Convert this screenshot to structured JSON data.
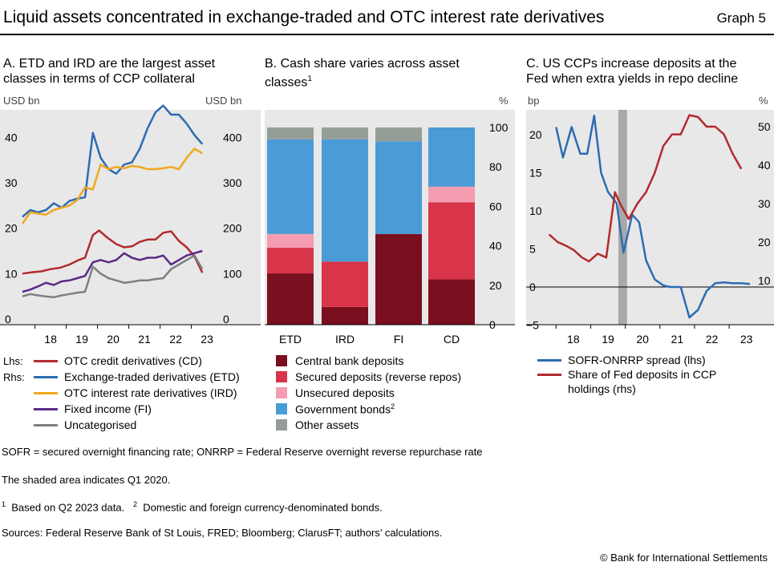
{
  "header": {
    "title": "Liquid assets concentrated in exchange-traded and OTC interest rate derivatives",
    "graph_label": "Graph 5"
  },
  "panel_a": {
    "title_line1": "A. ETD and IRD are the largest asset",
    "title_line2": "classes in terms of CCP collateral",
    "unit_left": "USD bn",
    "unit_right": "USD bn",
    "legend_lhs": "Lhs:",
    "legend_rhs": "Rhs:"
  },
  "panel_b": {
    "title_line1": "B. Cash share varies across asset",
    "title_line2": "classes",
    "title_sup": "1",
    "unit_right": "%"
  },
  "panel_c": {
    "title_line1": "C. US CCPs increase deposits at the",
    "title_line2": "Fed when extra yields in repo decline",
    "unit_left": "bp",
    "unit_right": "%"
  },
  "notes": {
    "abbrev": "SOFR = secured overnight financing rate; ONRRP = Federal Reserve overnight reverse repurchase rate",
    "shaded": "The shaded area indicates Q1 2020.",
    "fn1_num": "1",
    "fn1": "Based on Q2 2023 data.",
    "fn2_num": "2",
    "fn2": "Domestic and foreign currency-denominated bonds.",
    "sources": "Sources: Federal Reserve Bank of St Louis, FRED; Bloomberg; ClarusFT; authors’ calculations.",
    "copyright": "© Bank for International Settlements"
  },
  "chart_data": [
    {
      "type": "line",
      "title": "A. ETD and IRD are the largest asset classes in terms of CCP collateral",
      "xlabel": "",
      "ylabel_left": "USD bn",
      "ylabel_right": "USD bn",
      "x_ticks": [
        "18",
        "19",
        "20",
        "21",
        "22",
        "23"
      ],
      "x_range": [
        2017.6,
        2023.6
      ],
      "ylim_left": [
        0,
        48
      ],
      "yticks_left": [
        0,
        10,
        20,
        30,
        40
      ],
      "ylim_right": [
        0,
        480
      ],
      "yticks_right": [
        0,
        100,
        200,
        300,
        400
      ],
      "grid": false,
      "legend": "below",
      "series": [
        {
          "name": "OTC credit derivatives (CD)",
          "axis": "left",
          "color": "#b22a2e",
          "x": [
            2017.6,
            2017.9,
            2018.2,
            2018.5,
            2018.8,
            2019.1,
            2019.4,
            2019.6,
            2019.85,
            2020.05,
            2020.3,
            2020.6,
            2020.85,
            2021.1,
            2021.35,
            2021.6,
            2021.85,
            2022.1,
            2022.35,
            2022.6,
            2022.85,
            2023.1,
            2023.35
          ],
          "y": [
            10,
            10.3,
            10.5,
            11,
            11.3,
            12,
            13,
            13.5,
            18.5,
            19.5,
            18,
            16.5,
            15.8,
            16,
            17,
            17.5,
            17.5,
            19,
            19.3,
            17.2,
            15.8,
            13.8,
            10.2
          ]
        },
        {
          "name": "Exchange-traded derivatives (ETD)",
          "axis": "right",
          "color": "#2c6cb2",
          "x": [
            2017.6,
            2017.85,
            2018.1,
            2018.35,
            2018.6,
            2018.85,
            2019.1,
            2019.35,
            2019.6,
            2019.85,
            2020.1,
            2020.35,
            2020.6,
            2020.85,
            2021.1,
            2021.35,
            2021.6,
            2021.85,
            2022.1,
            2022.35,
            2022.6,
            2022.85,
            2023.1,
            2023.35
          ],
          "y": [
            225,
            240,
            235,
            240,
            255,
            245,
            260,
            265,
            268,
            410,
            355,
            330,
            320,
            340,
            345,
            375,
            420,
            455,
            470,
            450,
            450,
            430,
            405,
            385
          ]
        },
        {
          "name": "OTC interest rate derivatives (IRD)",
          "axis": "right",
          "color": "#f0a81e",
          "x": [
            2017.6,
            2017.85,
            2018.1,
            2018.35,
            2018.6,
            2018.85,
            2019.1,
            2019.35,
            2019.6,
            2019.85,
            2020.1,
            2020.35,
            2020.6,
            2020.85,
            2021.1,
            2021.35,
            2021.6,
            2021.85,
            2022.1,
            2022.35,
            2022.6,
            2022.85,
            2023.1,
            2023.35
          ],
          "y": [
            210,
            235,
            232,
            230,
            240,
            245,
            250,
            262,
            290,
            285,
            340,
            330,
            335,
            332,
            337,
            335,
            330,
            330,
            332,
            335,
            330,
            355,
            375,
            365
          ]
        },
        {
          "name": "Fixed income (FI)",
          "axis": "right",
          "color": "#5b2a86",
          "x": [
            2017.6,
            2017.85,
            2018.1,
            2018.35,
            2018.6,
            2018.85,
            2019.1,
            2019.35,
            2019.6,
            2019.85,
            2020.1,
            2020.35,
            2020.6,
            2020.85,
            2021.1,
            2021.35,
            2021.6,
            2021.85,
            2022.1,
            2022.35,
            2022.6,
            2022.85,
            2023.1,
            2023.35
          ],
          "y": [
            60,
            65,
            72,
            80,
            75,
            83,
            85,
            90,
            95,
            125,
            130,
            125,
            130,
            145,
            135,
            130,
            135,
            135,
            140,
            120,
            130,
            140,
            145,
            150
          ]
        },
        {
          "name": "Uncategorised",
          "axis": "right",
          "color": "#7f7f7f",
          "x": [
            2017.6,
            2017.85,
            2018.1,
            2018.35,
            2018.6,
            2018.85,
            2019.1,
            2019.35,
            2019.6,
            2019.85,
            2020.1,
            2020.35,
            2020.6,
            2020.85,
            2021.1,
            2021.35,
            2021.6,
            2021.85,
            2022.1,
            2022.35,
            2022.6,
            2022.85,
            2023.1,
            2023.35
          ],
          "y": [
            50,
            55,
            52,
            50,
            48,
            52,
            55,
            58,
            60,
            115,
            100,
            90,
            85,
            80,
            82,
            85,
            85,
            88,
            90,
            110,
            120,
            130,
            140,
            110
          ]
        }
      ]
    },
    {
      "type": "bar",
      "stacked": true,
      "title": "B. Cash share varies across asset classes",
      "categories": [
        "ETD",
        "IRD",
        "FI",
        "CD"
      ],
      "ylim": [
        0,
        100
      ],
      "yticks": [
        0,
        20,
        40,
        60,
        80,
        100
      ],
      "ylabel_right": "%",
      "legend": "below",
      "series": [
        {
          "name": "Central bank deposits",
          "color": "#7a0f1f",
          "values": [
            26,
            9,
            46,
            23
          ]
        },
        {
          "name": "Secured deposits (reverse repos)",
          "color": "#d8344a",
          "values": [
            13,
            23,
            0,
            39
          ]
        },
        {
          "name": "Unsecured deposits",
          "color": "#f59db0",
          "values": [
            7,
            0,
            0,
            8
          ]
        },
        {
          "name": "Government bonds",
          "color": "#4a9bd6",
          "values": [
            48,
            62,
            47,
            30
          ]
        },
        {
          "name": "Other assets",
          "color": "#959e96",
          "values": [
            6,
            6,
            7,
            0
          ]
        }
      ]
    },
    {
      "type": "line",
      "title": "C. US CCPs increase deposits at the Fed when extra yields in repo decline",
      "x_ticks": [
        "18",
        "19",
        "20",
        "21",
        "22",
        "23"
      ],
      "x_range": [
        2017.6,
        2023.6
      ],
      "ylim_left": [
        -8,
        25
      ],
      "yticks_left": [
        -5,
        0,
        5,
        10,
        15,
        20
      ],
      "ylim_right": [
        0,
        60
      ],
      "yticks_right": [
        10,
        20,
        30,
        40,
        50
      ],
      "ylabel_left": "bp",
      "ylabel_right": "%",
      "shaded_period": "Q1 2020",
      "legend": "below",
      "series": [
        {
          "name": "SOFR-ONRRP spread (lhs)",
          "axis": "left",
          "color": "#2c6cb2",
          "x": [
            2018.0,
            2018.2,
            2018.45,
            2018.7,
            2018.9,
            2019.1,
            2019.3,
            2019.5,
            2019.75,
            2019.95,
            2020.2,
            2020.4,
            2020.6,
            2020.85,
            2021.1,
            2021.3,
            2021.6,
            2021.85,
            2022.1,
            2022.35,
            2022.6,
            2022.85,
            2023.1,
            2023.35,
            2023.6
          ],
          "y": [
            21,
            17,
            21,
            17.5,
            17.5,
            22.5,
            15,
            12.5,
            11,
            4.5,
            9.5,
            8.5,
            3.5,
            1,
            0.2,
            0,
            0,
            -4,
            -3,
            -0.5,
            0.5,
            0.6,
            0.5,
            0.5,
            0.4
          ]
        },
        {
          "name": "Share of Fed deposits in CCP holdings (rhs)",
          "axis": "right",
          "color": "#b22a2e",
          "x": [
            2017.8,
            2018.05,
            2018.3,
            2018.5,
            2018.75,
            2018.95,
            2019.2,
            2019.45,
            2019.7,
            2019.85,
            2020.1,
            2020.35,
            2020.6,
            2020.85,
            2021.1,
            2021.35,
            2021.6,
            2021.85,
            2022.1,
            2022.35,
            2022.6,
            2022.85,
            2023.1,
            2023.35
          ],
          "y": [
            22,
            20,
            19,
            18,
            16,
            15,
            17,
            16,
            33,
            30,
            26,
            30,
            33,
            38,
            45,
            48,
            48,
            53,
            52.5,
            50,
            50,
            48,
            43,
            39
          ]
        }
      ]
    }
  ]
}
